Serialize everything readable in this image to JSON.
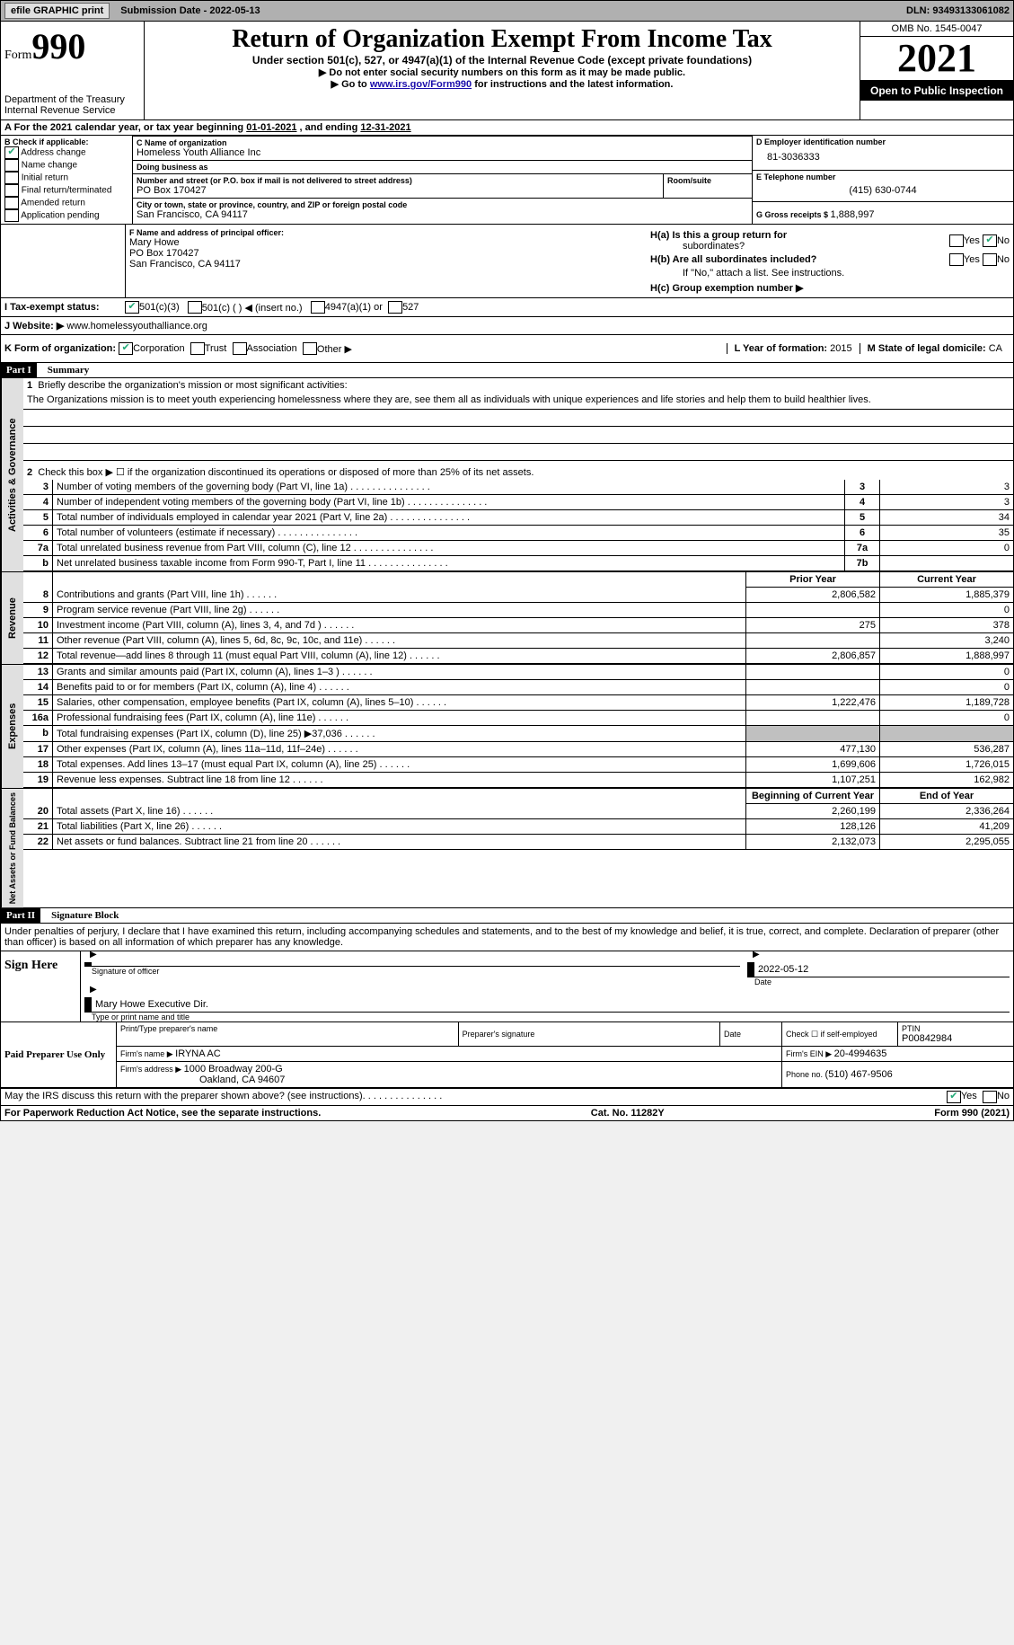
{
  "topbar": {
    "efile": "efile GRAPHIC print",
    "subdate_label": "Submission Date - ",
    "subdate": "2022-05-13",
    "dln_label": "DLN: ",
    "dln": "93493133061082"
  },
  "header": {
    "form_prefix": "Form",
    "form_num": "990",
    "dept": "Department of the Treasury",
    "irs": "Internal Revenue Service",
    "title": "Return of Organization Exempt From Income Tax",
    "subtitle": "Under section 501(c), 527, or 4947(a)(1) of the Internal Revenue Code (except private foundations)",
    "instr1": "▶ Do not enter social security numbers on this form as it may be made public.",
    "instr2_pre": "▶ Go to ",
    "instr2_link": "www.irs.gov/Form990",
    "instr2_post": " for instructions and the latest information.",
    "omb": "OMB No. 1545-0047",
    "year": "2021",
    "open": "Open to Public Inspection"
  },
  "rowA": {
    "text_pre": "A For the 2021 calendar year, or tax year beginning ",
    "begin": "01-01-2021",
    "mid": " , and ending ",
    "end": "12-31-2021"
  },
  "boxB": {
    "label": "B Check if applicable:",
    "addr_change": "Address change",
    "name_change": "Name change",
    "initial": "Initial return",
    "final": "Final return/terminated",
    "amended": "Amended return",
    "app_pending": "Application pending"
  },
  "boxC": {
    "name_label": "C Name of organization",
    "name": "Homeless Youth Alliance Inc",
    "dba_label": "Doing business as",
    "dba": "",
    "street_label": "Number and street (or P.O. box if mail is not delivered to street address)",
    "room_label": "Room/suite",
    "street": "PO Box 170427",
    "city_label": "City or town, state or province, country, and ZIP or foreign postal code",
    "city": "San Francisco, CA  94117"
  },
  "boxD": {
    "label": "D Employer identification number",
    "val": "81-3036333"
  },
  "boxE": {
    "label": "E Telephone number",
    "val": "(415) 630-0744"
  },
  "boxG": {
    "label": "G Gross receipts $ ",
    "val": "1,888,997"
  },
  "boxF": {
    "label": "F Name and address of principal officer:",
    "name": "Mary Howe",
    "addr1": "PO Box 170427",
    "addr2": "San Francisco, CA  94117"
  },
  "boxH": {
    "ha_label": "H(a)  Is this a group return for",
    "ha_sub": "subordinates?",
    "hb_label": "H(b)  Are all subordinates included?",
    "hb_note": "If \"No,\" attach a list. See instructions.",
    "hc_label": "H(c)  Group exemption number ▶",
    "yes": "Yes",
    "no": "No"
  },
  "boxI": {
    "label": "I    Tax-exempt status:",
    "c3": "501(c)(3)",
    "c_other": "501(c) (  ) ◀ (insert no.)",
    "a1": "4947(a)(1) or",
    "s527": "527"
  },
  "boxJ": {
    "label": "J   Website: ▶",
    "val": "www.homelessyouthalliance.org"
  },
  "boxK": {
    "label": "K Form of organization:",
    "corp": "Corporation",
    "trust": "Trust",
    "assoc": "Association",
    "other": "Other ▶"
  },
  "boxL": {
    "label": "L Year of formation: ",
    "val": "2015"
  },
  "boxM": {
    "label": "M State of legal domicile: ",
    "val": "CA"
  },
  "part1": {
    "header": "Part I",
    "title": "Summary",
    "line1_label": "Briefly describe the organization's mission or most significant activities:",
    "mission": "The Organizations mission is to meet youth experiencing homelessness where they are, see them all as individuals with unique experiences and life stories and help them to build healthier lives.",
    "line2": "Check this box ▶ ☐ if the organization discontinued its operations or disposed of more than 25% of its net assets.",
    "rows_gov": [
      {
        "n": "3",
        "label": "Number of voting members of the governing body (Part VI, line 1a)",
        "box": "3",
        "val": "3"
      },
      {
        "n": "4",
        "label": "Number of independent voting members of the governing body (Part VI, line 1b)",
        "box": "4",
        "val": "3"
      },
      {
        "n": "5",
        "label": "Total number of individuals employed in calendar year 2021 (Part V, line 2a)",
        "box": "5",
        "val": "34"
      },
      {
        "n": "6",
        "label": "Total number of volunteers (estimate if necessary)",
        "box": "6",
        "val": "35"
      },
      {
        "n": "7a",
        "label": "Total unrelated business revenue from Part VIII, column (C), line 12",
        "box": "7a",
        "val": "0"
      },
      {
        "n": "b",
        "label": "Net unrelated business taxable income from Form 990-T, Part I, line 11",
        "box": "7b",
        "val": ""
      }
    ],
    "col_headers": {
      "prior": "Prior Year",
      "current": "Current Year"
    },
    "rows_rev": [
      {
        "n": "8",
        "label": "Contributions and grants (Part VIII, line 1h)",
        "prior": "2,806,582",
        "curr": "1,885,379"
      },
      {
        "n": "9",
        "label": "Program service revenue (Part VIII, line 2g)",
        "prior": "",
        "curr": "0"
      },
      {
        "n": "10",
        "label": "Investment income (Part VIII, column (A), lines 3, 4, and 7d )",
        "prior": "275",
        "curr": "378"
      },
      {
        "n": "11",
        "label": "Other revenue (Part VIII, column (A), lines 5, 6d, 8c, 9c, 10c, and 11e)",
        "prior": "",
        "curr": "3,240"
      },
      {
        "n": "12",
        "label": "Total revenue—add lines 8 through 11 (must equal Part VIII, column (A), line 12)",
        "prior": "2,806,857",
        "curr": "1,888,997"
      }
    ],
    "rows_exp": [
      {
        "n": "13",
        "label": "Grants and similar amounts paid (Part IX, column (A), lines 1–3 )",
        "prior": "",
        "curr": "0"
      },
      {
        "n": "14",
        "label": "Benefits paid to or for members (Part IX, column (A), line 4)",
        "prior": "",
        "curr": "0"
      },
      {
        "n": "15",
        "label": "Salaries, other compensation, employee benefits (Part IX, column (A), lines 5–10)",
        "prior": "1,222,476",
        "curr": "1,189,728"
      },
      {
        "n": "16a",
        "label": "Professional fundraising fees (Part IX, column (A), line 11e)",
        "prior": "",
        "curr": "0"
      },
      {
        "n": "b",
        "label": "Total fundraising expenses (Part IX, column (D), line 25) ▶37,036",
        "prior": "GRAY",
        "curr": "GRAY"
      },
      {
        "n": "17",
        "label": "Other expenses (Part IX, column (A), lines 11a–11d, 11f–24e)",
        "prior": "477,130",
        "curr": "536,287"
      },
      {
        "n": "18",
        "label": "Total expenses. Add lines 13–17 (must equal Part IX, column (A), line 25)",
        "prior": "1,699,606",
        "curr": "1,726,015"
      },
      {
        "n": "19",
        "label": "Revenue less expenses. Subtract line 18 from line 12",
        "prior": "1,107,251",
        "curr": "162,982"
      }
    ],
    "col_headers2": {
      "prior": "Beginning of Current Year",
      "current": "End of Year"
    },
    "rows_net": [
      {
        "n": "20",
        "label": "Total assets (Part X, line 16)",
        "prior": "2,260,199",
        "curr": "2,336,264"
      },
      {
        "n": "21",
        "label": "Total liabilities (Part X, line 26)",
        "prior": "128,126",
        "curr": "41,209"
      },
      {
        "n": "22",
        "label": "Net assets or fund balances. Subtract line 21 from line 20",
        "prior": "2,132,073",
        "curr": "2,295,055"
      }
    ],
    "sidetabs": {
      "gov": "Activities & Governance",
      "rev": "Revenue",
      "exp": "Expenses",
      "net": "Net Assets or Fund Balances"
    }
  },
  "part2": {
    "header": "Part II",
    "title": "Signature Block",
    "penalty": "Under penalties of perjury, I declare that I have examined this return, including accompanying schedules and statements, and to the best of my knowledge and belief, it is true, correct, and complete. Declaration of preparer (other than officer) is based on all information of which preparer has any knowledge.",
    "sign_here": "Sign Here",
    "sig_officer": "Signature of officer",
    "sig_date": "2022-05-12",
    "date_label": "Date",
    "officer_name": "Mary Howe  Executive Dir.",
    "type_name": "Type or print name and title",
    "paid": "Paid Preparer Use Only",
    "prep_name_label": "Print/Type preparer's name",
    "prep_sig_label": "Preparer's signature",
    "prep_date_label": "Date",
    "prep_check": "Check ☐ if self-employed",
    "ptin_label": "PTIN",
    "ptin": "P00842984",
    "firm_name_label": "Firm's name    ▶ ",
    "firm_name": "IRYNA AC",
    "firm_ein_label": "Firm's EIN ▶ ",
    "firm_ein": "20-4994635",
    "firm_addr_label": "Firm's address ▶ ",
    "firm_addr1": "1000 Broadway 200-G",
    "firm_addr2": "Oakland, CA  94607",
    "phone_label": "Phone no. ",
    "phone": "(510) 467-9506",
    "discuss": "May the IRS discuss this return with the preparer shown above? (see instructions)",
    "yes": "Yes",
    "no": "No"
  },
  "footer": {
    "pra": "For Paperwork Reduction Act Notice, see the separate instructions.",
    "cat": "Cat. No. 11282Y",
    "form": "Form 990 (2021)"
  }
}
